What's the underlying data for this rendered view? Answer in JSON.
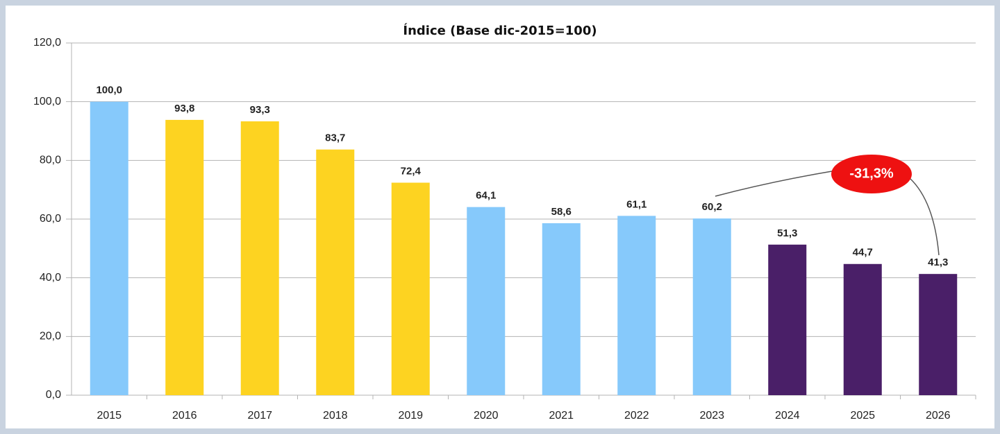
{
  "chart_data": {
    "type": "bar",
    "title": "Índice (Base dic-2015=100)",
    "categories": [
      "2015",
      "2016",
      "2017",
      "2018",
      "2019",
      "2020",
      "2021",
      "2022",
      "2023",
      "2024",
      "2025",
      "2026"
    ],
    "values": [
      100.0,
      93.8,
      93.3,
      83.7,
      72.4,
      64.1,
      58.6,
      61.1,
      60.2,
      51.3,
      44.7,
      41.3
    ],
    "value_labels": [
      "100,0",
      "93,8",
      "93,3",
      "83,7",
      "72,4",
      "64,1",
      "58,6",
      "61,1",
      "60,2",
      "51,3",
      "44,7",
      "41,3"
    ],
    "colors": [
      "#86c9fb",
      "#fdd321",
      "#fdd321",
      "#fdd321",
      "#fdd321",
      "#86c9fb",
      "#86c9fb",
      "#86c9fb",
      "#86c9fb",
      "#4a1f68",
      "#4a1f68",
      "#4a1f68"
    ],
    "ylim": [
      0,
      120
    ],
    "yticks": [
      {
        "value": 0,
        "label": "0,0"
      },
      {
        "value": 20,
        "label": "20,0"
      },
      {
        "value": 40,
        "label": "40,0"
      },
      {
        "value": 60,
        "label": "60,0"
      },
      {
        "value": 80,
        "label": "80,0"
      },
      {
        "value": 100,
        "label": "100,0"
      },
      {
        "value": 120,
        "label": "120,0"
      }
    ],
    "grid": true,
    "annotation": "-31,3%"
  }
}
